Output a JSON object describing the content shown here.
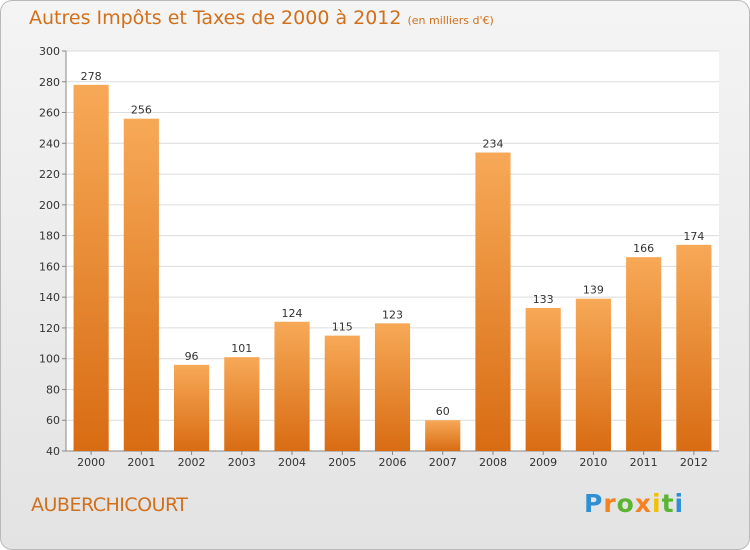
{
  "header": {
    "title": "Autres Impôts et Taxes de 2000 à 2012",
    "subtitle": "(en milliers d'€)"
  },
  "footer": {
    "commune": "AUBERCHICOURT",
    "logo": "Proxiti"
  },
  "colors": {
    "bar_top": "#f7a957",
    "bar_bottom": "#d86c13",
    "title": "#d26f1a"
  },
  "chart_data": {
    "type": "bar",
    "title": "Autres Impôts et Taxes de 2000 à 2012",
    "subtitle": "(en milliers d'€)",
    "categories": [
      "2000",
      "2001",
      "2002",
      "2003",
      "2004",
      "2005",
      "2006",
      "2007",
      "2008",
      "2009",
      "2010",
      "2011",
      "2012"
    ],
    "values": [
      278,
      256,
      96,
      101,
      124,
      115,
      123,
      60,
      234,
      133,
      139,
      166,
      174
    ],
    "ylim": [
      40,
      300
    ],
    "yticks": [
      40,
      60,
      80,
      100,
      120,
      140,
      160,
      180,
      200,
      220,
      240,
      260,
      280,
      300
    ],
    "grid": true,
    "data_labels": true
  }
}
